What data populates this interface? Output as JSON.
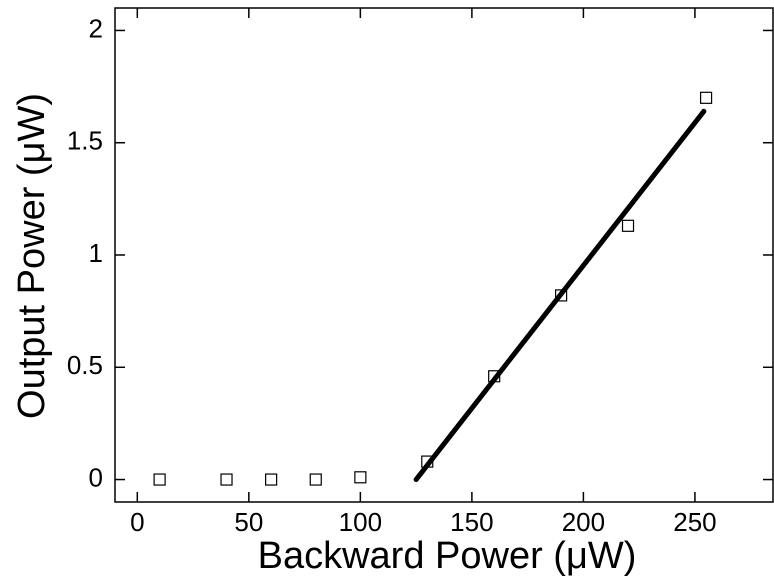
{
  "chart_data": {
    "type": "scatter",
    "x_label": "Backward Power (μW)",
    "y_label": "Output Power (μW)",
    "xlim": [
      -10,
      285
    ],
    "ylim": [
      -0.1,
      2.1
    ],
    "xticks": [
      0,
      50,
      100,
      150,
      200,
      250
    ],
    "yticks": [
      0,
      0.5,
      1,
      1.5,
      2
    ],
    "series": [
      {
        "type": "scatter",
        "color": "#000000",
        "x": [
          10,
          40,
          60,
          80,
          100,
          130,
          160,
          190,
          220,
          255
        ],
        "values": [
          0,
          0,
          0,
          0,
          0.01,
          0.08,
          0.46,
          0.82,
          1.13,
          1.7
        ]
      },
      {
        "type": "line",
        "color": "#000000",
        "x": [
          125,
          254
        ],
        "values": [
          0,
          1.64
        ]
      }
    ]
  }
}
